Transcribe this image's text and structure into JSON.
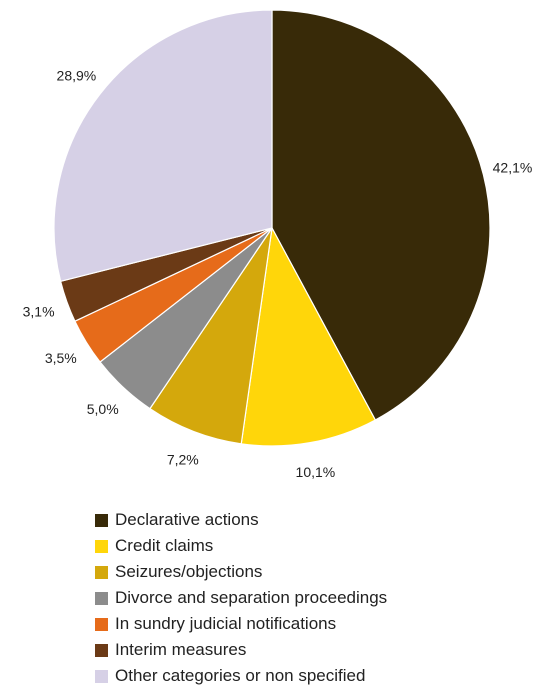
{
  "chart_data": {
    "type": "pie",
    "title": "",
    "legend_position": "bottom",
    "slice_order": "clockwise from top",
    "categories": [
      "Declarative actions",
      "Credit claims",
      "Seizures/objections",
      "Divorce and separation proceedings",
      "In sundry judicial notifications",
      "Interim measures",
      "Other categories or non specified"
    ],
    "values": [
      42.1,
      10.1,
      7.2,
      5.0,
      3.5,
      3.1,
      28.9
    ],
    "labels": [
      "42,1%",
      "10,1%",
      "7,2%",
      "5,0%",
      "3,5%",
      "3,1%",
      "28,9%"
    ],
    "colors": [
      "#382A08",
      "#FFD60A",
      "#D4A80C",
      "#8C8C8C",
      "#E66B1A",
      "#6B3A16",
      "#D6D0E6"
    ]
  }
}
